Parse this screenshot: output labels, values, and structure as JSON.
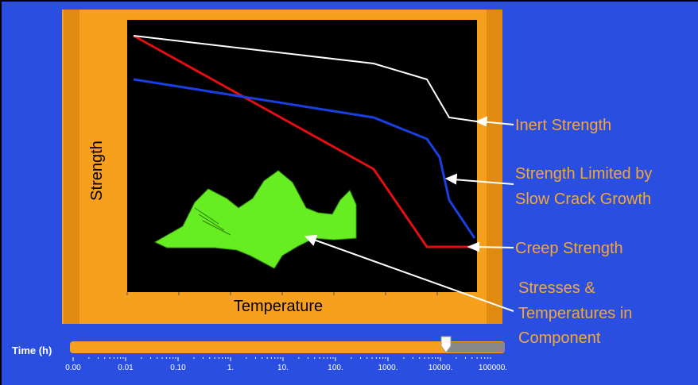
{
  "plot": {
    "y_axis_label": "Strength",
    "x_axis_label": "Temperature"
  },
  "callouts": [
    {
      "lines": [
        "Inert Strength"
      ]
    },
    {
      "lines": [
        "Strength Limited by",
        "Slow Crack Growth"
      ]
    },
    {
      "lines": [
        "Creep Strength"
      ]
    },
    {
      "lines": [
        "Stresses &",
        "Temperatures in",
        "Component"
      ]
    }
  ],
  "time_slider": {
    "label": "Time (h)",
    "tick_labels": [
      "0.00",
      "0.01",
      "0.10",
      "1.",
      "10.",
      "100.",
      "1000.",
      "10000.",
      "100000."
    ]
  }
}
